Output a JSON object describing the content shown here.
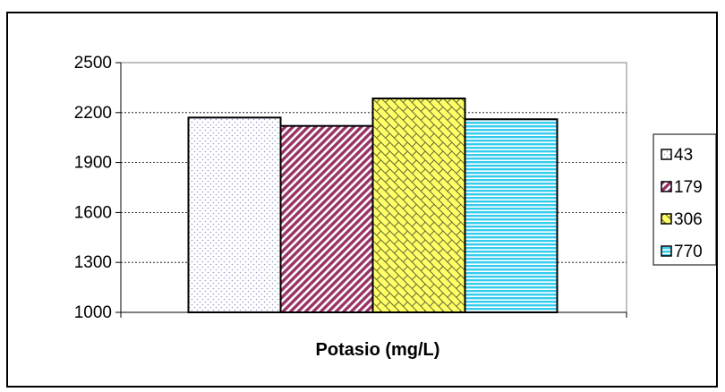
{
  "chart_data": {
    "type": "bar",
    "title": "",
    "xlabel": "Potasio (mg/L)",
    "ylabel": "",
    "ylim": [
      1000,
      2500
    ],
    "yticks": [
      1000,
      1300,
      1600,
      1900,
      2200,
      2500
    ],
    "categories": [
      ""
    ],
    "series": [
      {
        "name": "43",
        "values": [
          2170
        ],
        "color": "#ffffff",
        "pattern": "dots"
      },
      {
        "name": "179",
        "values": [
          2120
        ],
        "color": "#993366",
        "pattern": "diagonal-stripes"
      },
      {
        "name": "306",
        "values": [
          2285
        ],
        "color": "#ffff99",
        "pattern": "diagonal-brick"
      },
      {
        "name": "770",
        "values": [
          2160
        ],
        "color": "#33ccff",
        "pattern": "horizontal-lines"
      }
    ],
    "grid": true,
    "legend": "right",
    "background": "#c0c0c0"
  }
}
